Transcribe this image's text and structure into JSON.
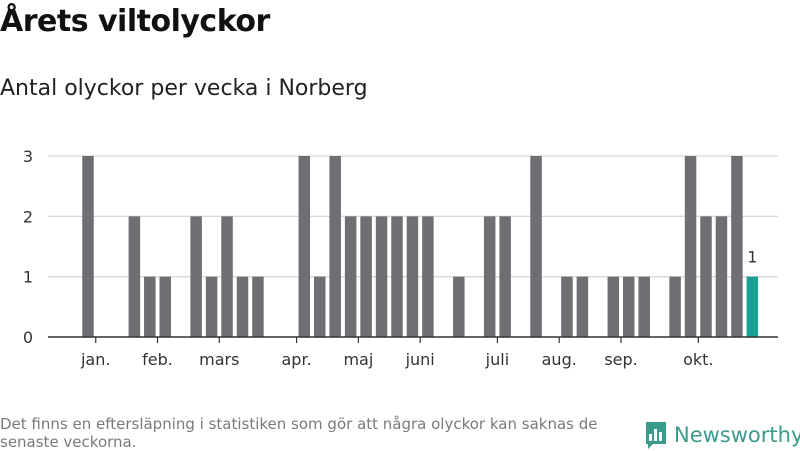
{
  "title": "Årets viltolyckor",
  "subtitle": "Antal olyckor per vecka i Norberg",
  "footnote": "Det finns en eftersläpning i statistiken som gör att några olyckor kan saknas de senaste veckorna.",
  "brand": {
    "name": "Newsworthy",
    "icon": "bar-chart-logo-icon"
  },
  "colors": {
    "bar": "#6e6e73",
    "highlight": "#1a9e96",
    "grid": "#d8d8d8",
    "axis": "#333333",
    "brand": "#3a9a8c"
  },
  "chart_data": {
    "type": "bar",
    "title": "Årets viltolyckor",
    "subtitle": "Antal olyckor per vecka i Norberg",
    "xlabel": "",
    "ylabel": "",
    "ylim": [
      0,
      3
    ],
    "yticks": [
      0,
      1,
      2,
      3
    ],
    "grid": true,
    "weeks": [
      1,
      2,
      3,
      4,
      5,
      6,
      7,
      8,
      9,
      10,
      11,
      12,
      13,
      14,
      15,
      16,
      17,
      18,
      19,
      20,
      21,
      22,
      23,
      24,
      25,
      26,
      27,
      28,
      29,
      30,
      31,
      32,
      33,
      34,
      35,
      36,
      37,
      38,
      39,
      40,
      41,
      42,
      43
    ],
    "values": [
      3,
      0,
      0,
      2,
      1,
      1,
      0,
      2,
      1,
      2,
      1,
      1,
      0,
      0,
      3,
      1,
      3,
      2,
      2,
      2,
      2,
      2,
      2,
      0,
      1,
      0,
      2,
      2,
      0,
      3,
      0,
      1,
      1,
      0,
      1,
      1,
      1,
      0,
      1,
      3,
      2,
      2,
      3
    ],
    "current_week": {
      "week": 44,
      "value": 1,
      "label": "1"
    },
    "month_labels": [
      {
        "label": "jan.",
        "week": 1.5
      },
      {
        "label": "feb.",
        "week": 5.5
      },
      {
        "label": "mars",
        "week": 9.5
      },
      {
        "label": "apr.",
        "week": 14.5
      },
      {
        "label": "maj",
        "week": 18.5
      },
      {
        "label": "juni",
        "week": 22.5
      },
      {
        "label": "juli",
        "week": 27.5
      },
      {
        "label": "aug.",
        "week": 31.5
      },
      {
        "label": "sep.",
        "week": 35.5
      },
      {
        "label": "okt.",
        "week": 40.5
      }
    ]
  }
}
